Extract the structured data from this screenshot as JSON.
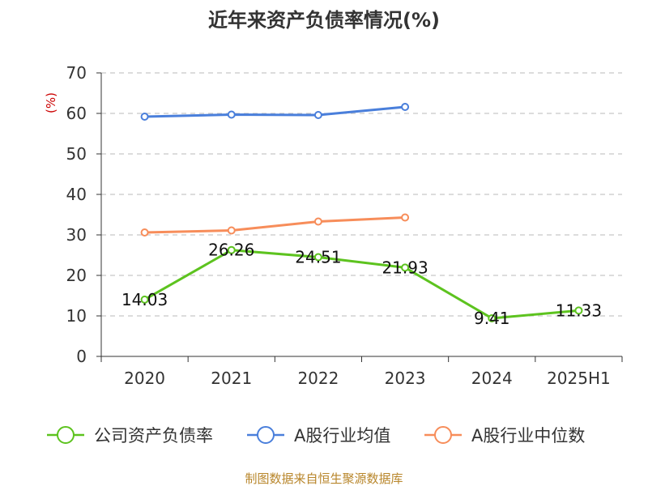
{
  "chart_data": {
    "type": "line",
    "title": "近年来资产负债率情况(%)",
    "ylabel": "(%)",
    "xlabel": "",
    "categories": [
      "2020",
      "2021",
      "2022",
      "2023",
      "2024",
      "2025H1"
    ],
    "ylim": [
      0,
      70
    ],
    "yticks": [
      0,
      10,
      20,
      30,
      40,
      50,
      60,
      70
    ],
    "grid": true,
    "legend_position": "bottom",
    "series": [
      {
        "name": "公司资产负债率",
        "color": "#5dc31f",
        "values": [
          14.03,
          26.26,
          24.51,
          21.93,
          9.41,
          11.33
        ],
        "labels": [
          "14.03",
          "26.26",
          "24.51",
          "21.93",
          "9.41",
          "11.33"
        ]
      },
      {
        "name": "A股行业均值",
        "color": "#4a7fdb",
        "values": [
          59.2,
          59.7,
          59.6,
          61.6,
          null,
          null
        ]
      },
      {
        "name": "A股行业中位数",
        "color": "#f78d5a",
        "values": [
          30.6,
          31.1,
          33.3,
          34.3,
          null,
          null
        ]
      }
    ],
    "source": "制图数据来自恒生聚源数据库"
  }
}
